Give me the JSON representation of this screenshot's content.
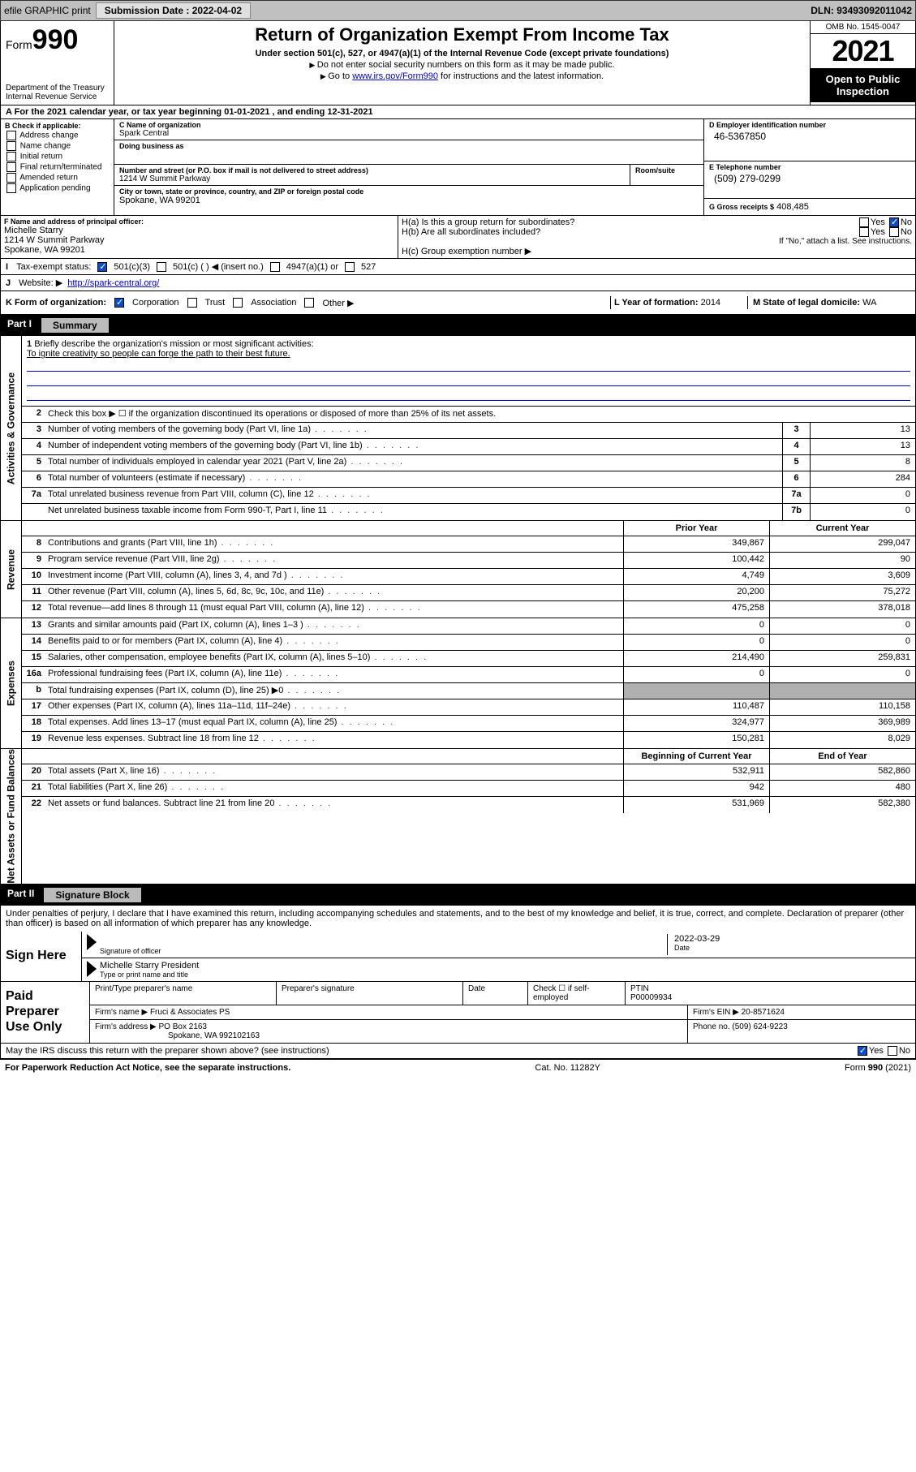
{
  "topbar": {
    "efile": "efile GRAPHIC print",
    "submission_label": "Submission Date : 2022-04-02",
    "dln": "DLN: 93493092011042"
  },
  "header": {
    "form_prefix": "Form",
    "form_number": "990",
    "dept": "Department of the Treasury",
    "irs": "Internal Revenue Service",
    "title": "Return of Organization Exempt From Income Tax",
    "sub": "Under section 501(c), 527, or 4947(a)(1) of the Internal Revenue Code (except private foundations)",
    "note1": "Do not enter social security numbers on this form as it may be made public.",
    "note2_pre": "Go to ",
    "note2_link": "www.irs.gov/Form990",
    "note2_post": " for instructions and the latest information.",
    "omb": "OMB No. 1545-0047",
    "year": "2021",
    "open": "Open to Public Inspection"
  },
  "period": "For the 2021 calendar year, or tax year beginning 01-01-2021   , and ending 12-31-2021",
  "boxB": {
    "head": "B Check if applicable:",
    "opts": [
      "Address change",
      "Name change",
      "Initial return",
      "Final return/terminated",
      "Amended return",
      "Application pending"
    ]
  },
  "boxC": {
    "name_head": "C Name of organization",
    "name": "Spark Central",
    "dba_head": "Doing business as",
    "dba": "",
    "addr_head": "Number and street (or P.O. box if mail is not delivered to street address)",
    "addr": "1214 W Summit Parkway",
    "room_head": "Room/suite",
    "city_head": "City or town, state or province, country, and ZIP or foreign postal code",
    "city": "Spokane, WA  99201"
  },
  "boxD": {
    "head": "D Employer identification number",
    "val": "46-5367850"
  },
  "boxE": {
    "head": "E Telephone number",
    "val": "(509) 279-0299"
  },
  "boxG": {
    "label": "G Gross receipts $",
    "val": "408,485"
  },
  "boxF": {
    "head": "F Name and address of principal officer:",
    "name": "Michelle Starry",
    "addr1": "1214 W Summit Parkway",
    "addr2": "Spokane, WA  99201"
  },
  "boxH": {
    "a": "H(a)  Is this a group return for subordinates?",
    "b": "H(b)  Are all subordinates included?",
    "bnote": "If \"No,\" attach a list. See instructions.",
    "c": "H(c)  Group exemption number ▶",
    "yes": "Yes",
    "no": "No"
  },
  "boxI": {
    "label": "Tax-exempt status:",
    "opts": [
      "501(c)(3)",
      "501(c) (  ) ◀ (insert no.)",
      "4947(a)(1) or",
      "527"
    ]
  },
  "boxJ": {
    "label": "Website: ▶",
    "val": "http://spark-central.org/"
  },
  "boxK": {
    "label": "K Form of organization:",
    "opts": [
      "Corporation",
      "Trust",
      "Association",
      "Other ▶"
    ]
  },
  "boxL": {
    "label": "L Year of formation:",
    "val": "2014"
  },
  "boxM": {
    "label": "M State of legal domicile:",
    "val": "WA"
  },
  "part1": {
    "pt": "Part I",
    "lbl": "Summary"
  },
  "summary": {
    "gov_label": "Activities & Governance",
    "rev_label": "Revenue",
    "exp_label": "Expenses",
    "net_label": "Net Assets or Fund Balances",
    "mission_q": "Briefly describe the organization's mission or most significant activities:",
    "mission": "To ignite creativity so people can forge the path to their best future.",
    "line2": "Check this box ▶ ☐  if the organization discontinued its operations or disposed of more than 25% of its net assets.",
    "rows_gov": [
      {
        "n": "3",
        "t": "Number of voting members of the governing body (Part VI, line 1a)",
        "k": "3",
        "v": "13"
      },
      {
        "n": "4",
        "t": "Number of independent voting members of the governing body (Part VI, line 1b)",
        "k": "4",
        "v": "13"
      },
      {
        "n": "5",
        "t": "Total number of individuals employed in calendar year 2021 (Part V, line 2a)",
        "k": "5",
        "v": "8"
      },
      {
        "n": "6",
        "t": "Total number of volunteers (estimate if necessary)",
        "k": "6",
        "v": "284"
      },
      {
        "n": "7a",
        "t": "Total unrelated business revenue from Part VIII, column (C), line 12",
        "k": "7a",
        "v": "0"
      },
      {
        "n": "",
        "t": "Net unrelated business taxable income from Form 990-T, Part I, line 11",
        "k": "7b",
        "v": "0"
      }
    ],
    "col_prior": "Prior Year",
    "col_current": "Current Year",
    "col_begin": "Beginning of Current Year",
    "col_end": "End of Year",
    "rows_rev": [
      {
        "n": "8",
        "t": "Contributions and grants (Part VIII, line 1h)",
        "p": "349,867",
        "c": "299,047"
      },
      {
        "n": "9",
        "t": "Program service revenue (Part VIII, line 2g)",
        "p": "100,442",
        "c": "90"
      },
      {
        "n": "10",
        "t": "Investment income (Part VIII, column (A), lines 3, 4, and 7d )",
        "p": "4,749",
        "c": "3,609"
      },
      {
        "n": "11",
        "t": "Other revenue (Part VIII, column (A), lines 5, 6d, 8c, 9c, 10c, and 11e)",
        "p": "20,200",
        "c": "75,272"
      },
      {
        "n": "12",
        "t": "Total revenue—add lines 8 through 11 (must equal Part VIII, column (A), line 12)",
        "p": "475,258",
        "c": "378,018"
      }
    ],
    "rows_exp": [
      {
        "n": "13",
        "t": "Grants and similar amounts paid (Part IX, column (A), lines 1–3 )",
        "p": "0",
        "c": "0"
      },
      {
        "n": "14",
        "t": "Benefits paid to or for members (Part IX, column (A), line 4)",
        "p": "0",
        "c": "0"
      },
      {
        "n": "15",
        "t": "Salaries, other compensation, employee benefits (Part IX, column (A), lines 5–10)",
        "p": "214,490",
        "c": "259,831"
      },
      {
        "n": "16a",
        "t": "Professional fundraising fees (Part IX, column (A), line 11e)",
        "p": "0",
        "c": "0"
      },
      {
        "n": "b",
        "t": "Total fundraising expenses (Part IX, column (D), line 25) ▶0",
        "p": "",
        "c": "",
        "grey": true
      },
      {
        "n": "17",
        "t": "Other expenses (Part IX, column (A), lines 11a–11d, 11f–24e)",
        "p": "110,487",
        "c": "110,158"
      },
      {
        "n": "18",
        "t": "Total expenses. Add lines 13–17 (must equal Part IX, column (A), line 25)",
        "p": "324,977",
        "c": "369,989"
      },
      {
        "n": "19",
        "t": "Revenue less expenses. Subtract line 18 from line 12",
        "p": "150,281",
        "c": "8,029"
      }
    ],
    "rows_net": [
      {
        "n": "20",
        "t": "Total assets (Part X, line 16)",
        "p": "532,911",
        "c": "582,860"
      },
      {
        "n": "21",
        "t": "Total liabilities (Part X, line 26)",
        "p": "942",
        "c": "480"
      },
      {
        "n": "22",
        "t": "Net assets or fund balances. Subtract line 21 from line 20",
        "p": "531,969",
        "c": "582,380"
      }
    ]
  },
  "part2": {
    "pt": "Part II",
    "lbl": "Signature Block"
  },
  "penalties": "Under penalties of perjury, I declare that I have examined this return, including accompanying schedules and statements, and to the best of my knowledge and belief, it is true, correct, and complete. Declaration of preparer (other than officer) is based on all information of which preparer has any knowledge.",
  "sign": {
    "here": "Sign Here",
    "sig_label": "Signature of officer",
    "date": "2022-03-29",
    "date_label": "Date",
    "name": "Michelle Starry  President",
    "name_label": "Type or print name and title"
  },
  "prep": {
    "title": "Paid Preparer Use Only",
    "h1": "Print/Type preparer's name",
    "h2": "Preparer's signature",
    "h3": "Date",
    "h4_check": "Check ☐ if self-employed",
    "h5": "PTIN",
    "ptin": "P00009934",
    "firm_name_lbl": "Firm's name     ▶",
    "firm_name": "Fruci & Associates PS",
    "firm_ein_lbl": "Firm's EIN ▶",
    "firm_ein": "20-8571624",
    "firm_addr_lbl": "Firm's address ▶",
    "firm_addr1": "PO Box 2163",
    "firm_addr2": "Spokane, WA  992102163",
    "phone_lbl": "Phone no.",
    "phone": "(509) 624-9223"
  },
  "discuss": {
    "q": "May the IRS discuss this return with the preparer shown above? (see instructions)",
    "yes": "Yes",
    "no": "No"
  },
  "footer": {
    "pra": "For Paperwork Reduction Act Notice, see the separate instructions.",
    "cat": "Cat. No. 11282Y",
    "form": "Form 990 (2021)"
  },
  "colors": {
    "link": "#0000cc",
    "checked": "#0a4dc7",
    "grey": "#b0b0b0",
    "topbar": "#c0c0c0"
  }
}
